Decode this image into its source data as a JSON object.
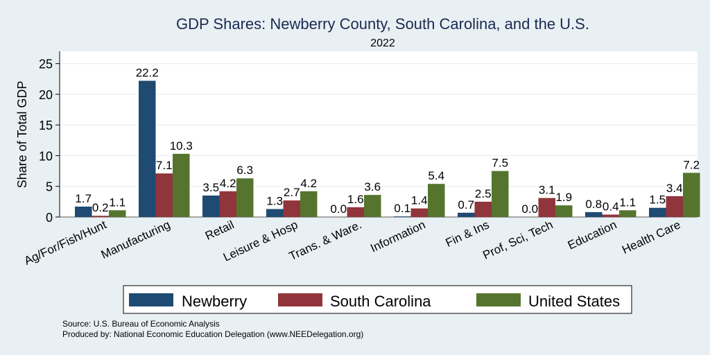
{
  "chart_data": {
    "type": "bar",
    "title": "GDP Shares: Newberry County, South Carolina, and the U.S.",
    "subtitle": "2022",
    "xlabel": "",
    "ylabel": "Share of Total GDP",
    "ylim": [
      0,
      27
    ],
    "yticks": [
      0,
      5,
      10,
      15,
      20,
      25
    ],
    "grid": true,
    "legend_position": "bottom",
    "categories": [
      "Ag/For/Fish/Hunt",
      "Manufacturing",
      "Retail",
      "Leisure & Hosp",
      "Trans. & Ware.",
      "Information",
      "Fin & Ins",
      "Prof, Sci, Tech",
      "Education",
      "Health Care"
    ],
    "series": [
      {
        "name": "Newberry",
        "color": "#1f4a72",
        "values": [
          1.7,
          22.2,
          3.5,
          1.3,
          0.0,
          0.1,
          0.7,
          0.0,
          0.8,
          1.5
        ]
      },
      {
        "name": "South Carolina",
        "color": "#90353b",
        "values": [
          0.2,
          7.1,
          4.2,
          2.7,
          1.6,
          1.4,
          2.5,
          3.1,
          0.4,
          3.4
        ]
      },
      {
        "name": "United States",
        "color": "#55752f",
        "values": [
          1.1,
          10.3,
          6.3,
          4.2,
          3.6,
          5.4,
          7.5,
          1.9,
          1.1,
          7.2
        ]
      }
    ]
  },
  "notes": {
    "source": "Source: U.S. Bureau of Economic Analysis",
    "produced": "Produced by: National Economic Education Delegation (www.NEEDelegation.org)"
  }
}
